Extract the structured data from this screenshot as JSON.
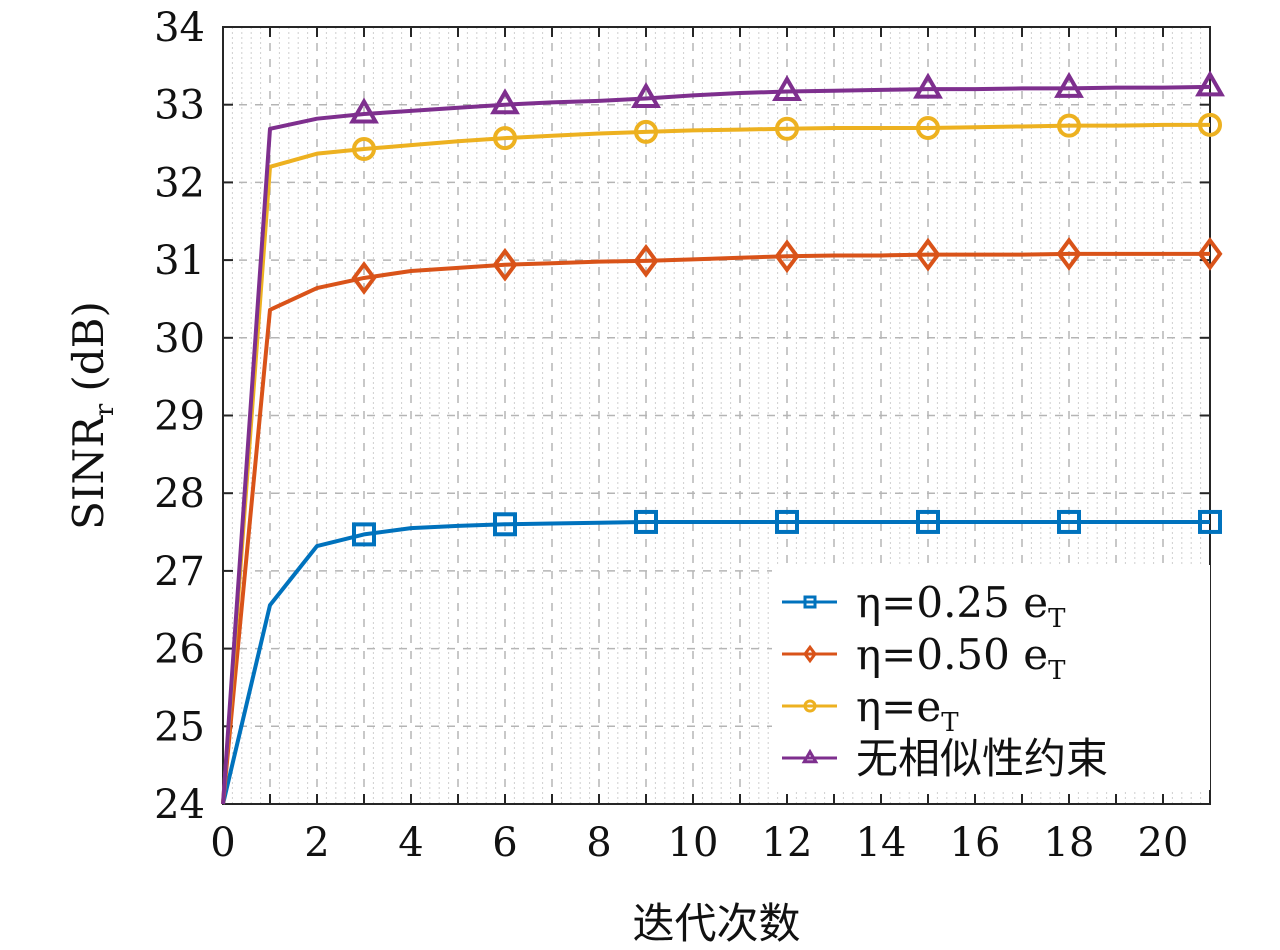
{
  "chart_data": {
    "type": "line",
    "title": "",
    "xlabel": "迭代次数",
    "ylabel": "SINR_r (dB)",
    "ylabel_main": "SINR",
    "ylabel_sub": "r",
    "ylabel_unit": "(dB)",
    "xlim": [
      0,
      21
    ],
    "ylim": [
      24,
      34
    ],
    "xticks": [
      0,
      2,
      4,
      6,
      8,
      10,
      12,
      14,
      16,
      18,
      20
    ],
    "yticks": [
      24,
      25,
      26,
      27,
      28,
      29,
      30,
      31,
      32,
      33,
      34
    ],
    "xtick_labels": [
      "0",
      "2",
      "4",
      "6",
      "8",
      "10",
      "12",
      "14",
      "16",
      "18",
      "20"
    ],
    "ytick_labels": [
      "24",
      "25",
      "26",
      "27",
      "28",
      "29",
      "30",
      "31",
      "32",
      "33",
      "34"
    ],
    "grid": true,
    "minor_grid": true,
    "legend_position": "bottom-right",
    "x": [
      0,
      1,
      2,
      3,
      4,
      5,
      6,
      7,
      8,
      9,
      10,
      11,
      12,
      13,
      14,
      15,
      16,
      17,
      18,
      19,
      20,
      21
    ],
    "marker_x": [
      3,
      6,
      9,
      12,
      15,
      18,
      21
    ],
    "series": [
      {
        "name": "η=0.25 e_T",
        "legend_main": "η=0.25  e",
        "legend_sub": "T",
        "color": "#0072BD",
        "marker": "square",
        "values": [
          24.0,
          26.56,
          27.32,
          27.47,
          27.55,
          27.58,
          27.6,
          27.61,
          27.62,
          27.63,
          27.63,
          27.63,
          27.63,
          27.63,
          27.63,
          27.63,
          27.63,
          27.63,
          27.63,
          27.63,
          27.63,
          27.63
        ]
      },
      {
        "name": "η=0.50 e_T",
        "legend_main": "η=0.50  e",
        "legend_sub": "T",
        "color": "#D95319",
        "marker": "diamond",
        "values": [
          24.0,
          30.36,
          30.64,
          30.77,
          30.86,
          30.9,
          30.94,
          30.96,
          30.98,
          30.99,
          31.01,
          31.03,
          31.05,
          31.06,
          31.06,
          31.07,
          31.07,
          31.07,
          31.08,
          31.08,
          31.08,
          31.08
        ]
      },
      {
        "name": "η=e_T",
        "legend_main": "η=e",
        "legend_sub": "T",
        "color": "#EDB120",
        "marker": "circle",
        "values": [
          24.0,
          32.2,
          32.37,
          32.43,
          32.48,
          32.53,
          32.57,
          32.6,
          32.63,
          32.65,
          32.67,
          32.68,
          32.69,
          32.7,
          32.7,
          32.7,
          32.71,
          32.72,
          32.73,
          32.73,
          32.74,
          32.74
        ]
      },
      {
        "name": "无相似性约束",
        "legend_main": "无相似性约束",
        "legend_sub": "",
        "color": "#7E2F8E",
        "marker": "triangle",
        "values": [
          24.0,
          32.69,
          32.82,
          32.88,
          32.92,
          32.96,
          33.0,
          33.03,
          33.05,
          33.08,
          33.12,
          33.15,
          33.17,
          33.18,
          33.19,
          33.2,
          33.2,
          33.21,
          33.21,
          33.22,
          33.22,
          33.23
        ]
      }
    ]
  }
}
